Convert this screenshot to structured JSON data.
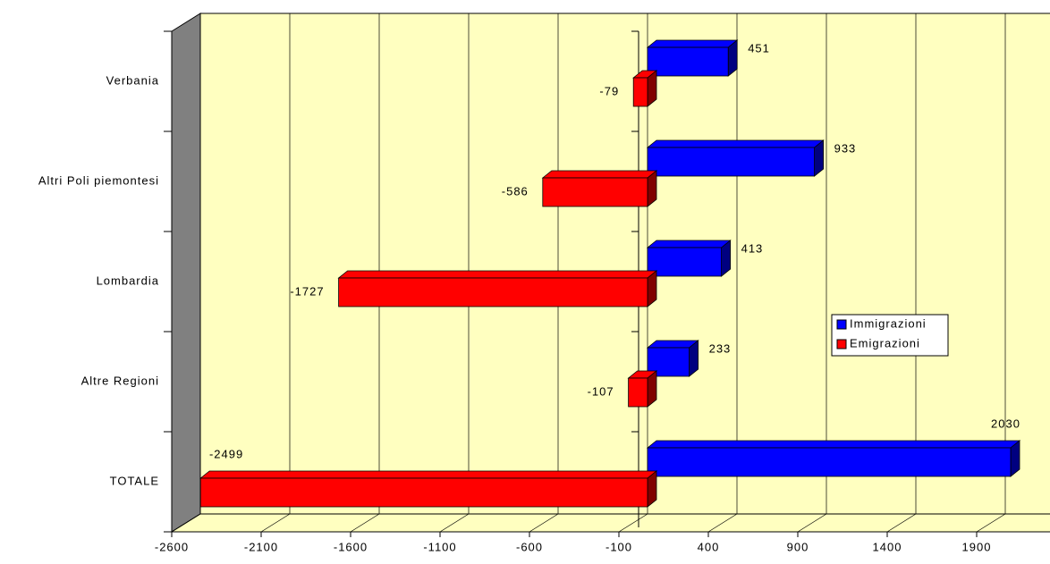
{
  "chart_data": {
    "type": "bar3d_horizontal",
    "categories": [
      "Verbania",
      "Altri Poli piemontesi",
      "Lombardia",
      "Altre Regioni",
      "TOTALE"
    ],
    "series": [
      {
        "name": "Immigrazioni",
        "color": "#0000ff",
        "values": [
          451,
          933,
          413,
          233,
          2030
        ]
      },
      {
        "name": "Emigrazioni",
        "color": "#ff0000",
        "values": [
          -79,
          -586,
          -1727,
          -107,
          -2499
        ]
      }
    ],
    "xlim": [
      -2600,
      2400
    ],
    "xticks": [
      -2600,
      -2100,
      -1600,
      -1100,
      -600,
      -100,
      400,
      900,
      1400,
      1900
    ],
    "grid": true,
    "legend": "right"
  }
}
